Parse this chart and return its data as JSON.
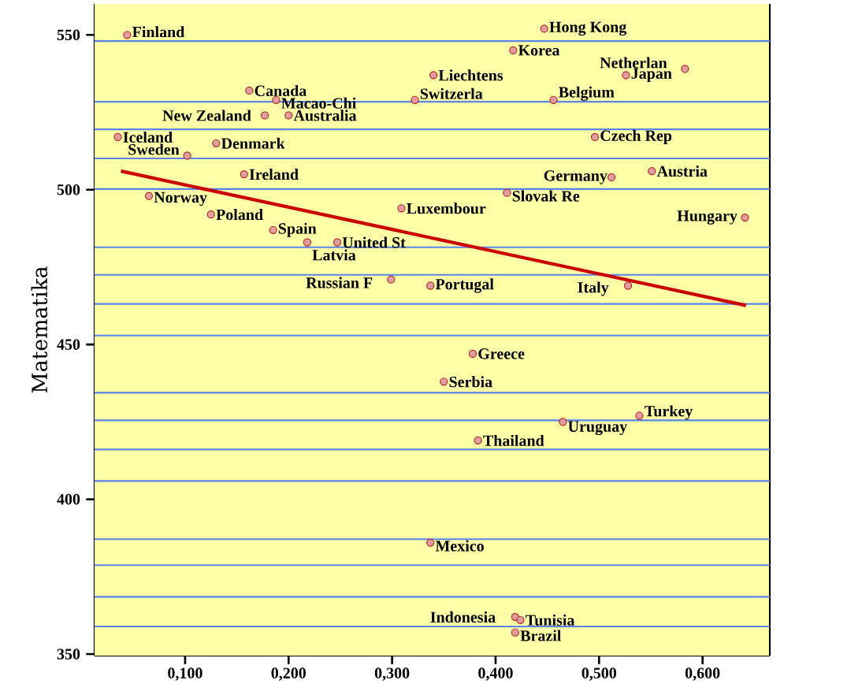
{
  "chart_data": {
    "type": "scatter",
    "ylabel": "Matematika",
    "xlim": [
      0.0125,
      0.665
    ],
    "ylim": [
      349.5,
      560
    ],
    "xticks": [
      {
        "value": 0.1,
        "label": "0,100"
      },
      {
        "value": 0.2,
        "label": "0,200"
      },
      {
        "value": 0.3,
        "label": "0,300"
      },
      {
        "value": 0.4,
        "label": "0,400"
      },
      {
        "value": 0.5,
        "label": "0,500"
      },
      {
        "value": 0.6,
        "label": "0,600"
      }
    ],
    "yticks": [
      350,
      400,
      450,
      500,
      550
    ],
    "series": [
      {
        "color": "#b8282a",
        "x": [
          0.044,
          0.162,
          0.188,
          0.177,
          0.2,
          0.035,
          0.102,
          0.13,
          0.157,
          0.065,
          0.125,
          0.185,
          0.218,
          0.247,
          0.299,
          0.309,
          0.322,
          0.34,
          0.447,
          0.417,
          0.456,
          0.526,
          0.583,
          0.496,
          0.512,
          0.551,
          0.411,
          0.641,
          0.528,
          0.337,
          0.378,
          0.35,
          0.465,
          0.539,
          0.383,
          0.337,
          0.419,
          0.424,
          0.419
        ],
        "values": [
          550,
          532,
          529,
          524,
          524,
          517,
          511,
          515,
          505,
          498,
          492,
          487,
          483,
          483,
          471,
          494,
          529,
          537,
          552,
          545,
          529,
          537,
          539,
          517,
          504,
          506,
          499,
          491,
          469,
          469,
          447,
          438,
          425,
          427,
          419,
          386,
          362,
          361,
          357
        ],
        "value_labels": [
          "Finland",
          "Canada",
          "Macao-Chi",
          "New Zealand",
          "Australia",
          "Iceland",
          "Sweden",
          "Denmark",
          "Ireland",
          "Norway",
          "Poland",
          "Spain",
          "Latvia",
          "United St",
          "Russian F",
          "Luxembour",
          "Switzerla",
          "Liechtens",
          "Hong Kong",
          "Korea",
          "Belgium",
          "Japan",
          "Netherlan",
          "Czech Rep",
          "Germany",
          "Austria",
          "Slovak Re",
          "Hungary",
          "Italy",
          "Portugal",
          "Greece",
          "Serbia",
          "Uruguay",
          "Turkey",
          "Thailand",
          "Mexico",
          "Indonesia",
          "Tunisia",
          "Brazil"
        ]
      },
      {
        "type": "line",
        "color": "#cc0000",
        "marker": "none",
        "x": [
          0.038,
          0.642
        ],
        "values": [
          506,
          462.6
        ]
      }
    ],
    "ref_lines": [
      {
        "axis": "y",
        "value": 548.0,
        "color": "#5a86e8"
      },
      {
        "axis": "y",
        "value": 528.4,
        "color": "#5a86e8"
      },
      {
        "axis": "y",
        "value": 519.5,
        "color": "#5a86e8"
      },
      {
        "axis": "y",
        "value": 510.1,
        "color": "#5a86e8"
      },
      {
        "axis": "y",
        "value": 500.2,
        "color": "#5a86e8"
      },
      {
        "axis": "y",
        "value": 481.4,
        "color": "#5a86e8"
      },
      {
        "axis": "y",
        "value": 472.5,
        "color": "#5a86e8"
      },
      {
        "axis": "y",
        "value": 463.1,
        "color": "#5a86e8"
      },
      {
        "axis": "y",
        "value": 452.9,
        "color": "#5a86e8"
      },
      {
        "axis": "y",
        "value": 434.4,
        "color": "#5a86e8"
      },
      {
        "axis": "y",
        "value": 425.5,
        "color": "#5a86e8"
      },
      {
        "axis": "y",
        "value": 416.1,
        "color": "#5a86e8"
      },
      {
        "axis": "y",
        "value": 405.9,
        "color": "#5a86e8"
      },
      {
        "axis": "y",
        "value": 387.1,
        "color": "#5a86e8"
      },
      {
        "axis": "y",
        "value": 378.7,
        "color": "#5a86e8"
      },
      {
        "axis": "y",
        "value": 368.5,
        "color": "#5a86e8"
      },
      {
        "axis": "y",
        "value": 358.9,
        "color": "#5a86e8"
      }
    ]
  }
}
